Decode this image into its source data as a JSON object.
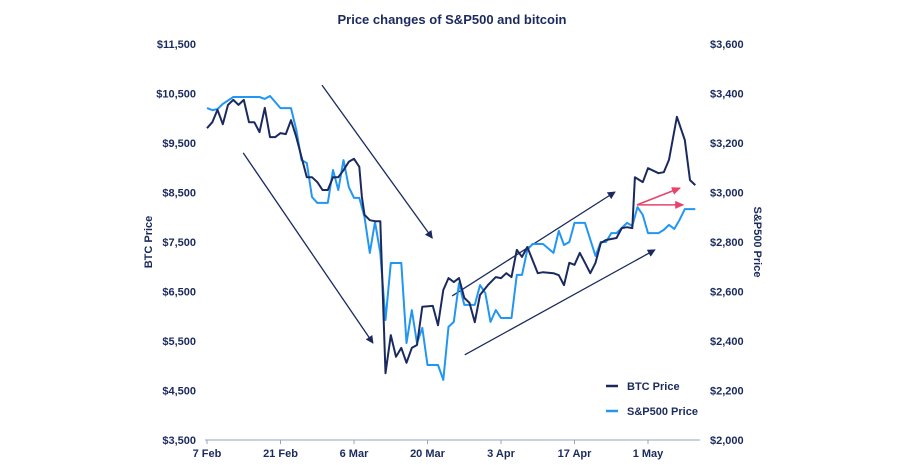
{
  "chart_data": {
    "type": "line",
    "title": "Price changes of S&P500 and bitcoin",
    "xlabel": "",
    "ylabel_left": "BTC Price",
    "ylabel_right": "S&P500 Price",
    "x_unit": "days since 7 Feb",
    "x_ticks": [
      {
        "day": 0,
        "label": "7 Feb"
      },
      {
        "day": 14,
        "label": "21 Feb"
      },
      {
        "day": 28,
        "label": "6 Mar"
      },
      {
        "day": 42,
        "label": "20 Mar"
      },
      {
        "day": 56,
        "label": "3 Apr"
      },
      {
        "day": 70,
        "label": "17 Apr"
      },
      {
        "day": 84,
        "label": "1 May"
      }
    ],
    "xlim": [
      0,
      94
    ],
    "ylim_left": [
      3500,
      11500
    ],
    "ylim_right": [
      2000,
      3600
    ],
    "y_ticks_left": [
      "$3,500",
      "$4,500",
      "$5,500",
      "$6,500",
      "$7,500",
      "$8,500",
      "$9,500",
      "$10,500",
      "$11,500"
    ],
    "y_ticks_right": [
      "$2,000",
      "$2,200",
      "$2,400",
      "$2,600",
      "$2,800",
      "$3,000",
      "$3,200",
      "$3,400",
      "$3,600"
    ],
    "grid": false,
    "legend_position": "bottom-right",
    "colors": {
      "btc": "#1b2a5e",
      "sp500": "#2196f3",
      "highlight": "#e8436a",
      "text": "#1b2a5e"
    },
    "series": [
      {
        "name": "BTC Price",
        "axis": "left",
        "color": "#1b2a5e",
        "points": [
          [
            0,
            9800
          ],
          [
            1,
            9920
          ],
          [
            2,
            10170
          ],
          [
            3,
            9880
          ],
          [
            4,
            10270
          ],
          [
            5,
            10370
          ],
          [
            6,
            10270
          ],
          [
            7,
            10370
          ],
          [
            8,
            9920
          ],
          [
            9,
            9920
          ],
          [
            10,
            9720
          ],
          [
            11,
            10210
          ],
          [
            12,
            9620
          ],
          [
            13,
            9620
          ],
          [
            14,
            9700
          ],
          [
            15,
            9680
          ],
          [
            16,
            9960
          ],
          [
            17,
            9620
          ],
          [
            19,
            8810
          ],
          [
            20,
            8810
          ],
          [
            21,
            8710
          ],
          [
            22,
            8550
          ],
          [
            23,
            8550
          ],
          [
            24,
            8810
          ],
          [
            25,
            8810
          ],
          [
            26,
            8950
          ],
          [
            27,
            9120
          ],
          [
            28,
            9180
          ],
          [
            29,
            9020
          ],
          [
            29.5,
            8410
          ],
          [
            30,
            8050
          ],
          [
            31,
            7940
          ],
          [
            32,
            7920
          ],
          [
            33,
            7920
          ],
          [
            34,
            4850
          ],
          [
            35,
            5620
          ],
          [
            36,
            5180
          ],
          [
            37,
            5360
          ],
          [
            38,
            5060
          ],
          [
            39,
            5360
          ],
          [
            40,
            5420
          ],
          [
            41,
            6190
          ],
          [
            43,
            6210
          ],
          [
            44,
            5820
          ],
          [
            45,
            6530
          ],
          [
            46,
            6770
          ],
          [
            47,
            6690
          ],
          [
            48,
            6770
          ],
          [
            49,
            6370
          ],
          [
            50,
            6270
          ],
          [
            51,
            5880
          ],
          [
            52,
            6430
          ],
          [
            53.5,
            6630
          ],
          [
            55,
            6790
          ],
          [
            56,
            6770
          ],
          [
            57,
            6870
          ],
          [
            58,
            6790
          ],
          [
            59,
            7340
          ],
          [
            60,
            7200
          ],
          [
            61,
            7400
          ],
          [
            63,
            6870
          ],
          [
            64,
            6890
          ],
          [
            66,
            6870
          ],
          [
            67,
            6830
          ],
          [
            68,
            6630
          ],
          [
            69,
            7080
          ],
          [
            70,
            7040
          ],
          [
            71,
            7280
          ],
          [
            72,
            7080
          ],
          [
            73,
            6870
          ],
          [
            74,
            7080
          ],
          [
            75,
            7480
          ],
          [
            76,
            7540
          ],
          [
            78,
            7580
          ],
          [
            79,
            7780
          ],
          [
            80,
            7800
          ],
          [
            81,
            7780
          ],
          [
            81.5,
            8810
          ],
          [
            83,
            8710
          ],
          [
            84,
            8990
          ],
          [
            86,
            8890
          ],
          [
            87,
            8910
          ],
          [
            88,
            9160
          ],
          [
            89.5,
            10030
          ],
          [
            91,
            9560
          ],
          [
            92,
            8750
          ],
          [
            93,
            8650
          ]
        ]
      },
      {
        "name": "S&P500 Price",
        "axis": "right",
        "color": "#2196f3",
        "points": [
          [
            0,
            3341
          ],
          [
            1,
            3333
          ],
          [
            2,
            3337
          ],
          [
            3,
            3358
          ],
          [
            5,
            3386
          ],
          [
            7,
            3386
          ],
          [
            10,
            3386
          ],
          [
            11,
            3378
          ],
          [
            12,
            3390
          ],
          [
            14,
            3341
          ],
          [
            16,
            3341
          ],
          [
            17,
            3253
          ],
          [
            18,
            3131
          ],
          [
            19,
            3119
          ],
          [
            20,
            2982
          ],
          [
            21,
            2958
          ],
          [
            23,
            2958
          ],
          [
            24,
            3091
          ],
          [
            25,
            3010
          ],
          [
            26,
            3131
          ],
          [
            27,
            3022
          ],
          [
            28,
            2978
          ],
          [
            29,
            2978
          ],
          [
            30,
            2901
          ],
          [
            31,
            2756
          ],
          [
            32,
            2881
          ],
          [
            33,
            2756
          ],
          [
            34,
            2485
          ],
          [
            35,
            2715
          ],
          [
            37,
            2715
          ],
          [
            38,
            2392
          ],
          [
            39,
            2525
          ],
          [
            40,
            2392
          ],
          [
            41,
            2453
          ],
          [
            42,
            2303
          ],
          [
            44,
            2303
          ],
          [
            45,
            2243
          ],
          [
            46,
            2457
          ],
          [
            47,
            2477
          ],
          [
            48,
            2634
          ],
          [
            49,
            2546
          ],
          [
            51,
            2546
          ],
          [
            52,
            2626
          ],
          [
            53,
            2594
          ],
          [
            54,
            2477
          ],
          [
            55,
            2525
          ],
          [
            56,
            2493
          ],
          [
            58,
            2493
          ],
          [
            59,
            2667
          ],
          [
            60,
            2667
          ],
          [
            61,
            2768
          ],
          [
            62,
            2792
          ],
          [
            64,
            2792
          ],
          [
            66,
            2756
          ],
          [
            67,
            2845
          ],
          [
            68,
            2788
          ],
          [
            69,
            2800
          ],
          [
            70,
            2877
          ],
          [
            72,
            2877
          ],
          [
            74,
            2744
          ],
          [
            75,
            2800
          ],
          [
            76,
            2800
          ],
          [
            77,
            2836
          ],
          [
            78,
            2836
          ],
          [
            80,
            2877
          ],
          [
            81,
            2865
          ],
          [
            82,
            2941
          ],
          [
            83,
            2909
          ],
          [
            84,
            2836
          ],
          [
            86,
            2836
          ],
          [
            87,
            2849
          ],
          [
            88,
            2869
          ],
          [
            89,
            2853
          ],
          [
            90,
            2889
          ],
          [
            91,
            2933
          ],
          [
            93,
            2933
          ]
        ]
      }
    ],
    "annotations": [
      {
        "type": "arrow",
        "color": "#1b2a5e",
        "from": [
          6.9,
          9300
        ],
        "to": [
          31.6,
          5460
        ],
        "axis": "left"
      },
      {
        "type": "arrow",
        "color": "#1b2a5e",
        "from": [
          21.9,
          10670
        ],
        "to": [
          42.9,
          7580
        ],
        "axis": "left"
      },
      {
        "type": "arrow",
        "color": "#1b2a5e",
        "from": [
          46.7,
          6410
        ],
        "to": [
          77.7,
          8510
        ],
        "axis": "left"
      },
      {
        "type": "arrow",
        "color": "#1b2a5e",
        "from": [
          49.1,
          5220
        ],
        "to": [
          85.3,
          7340
        ],
        "axis": "left"
      },
      {
        "type": "arrow",
        "color": "#e8436a",
        "from": [
          81.9,
          8250
        ],
        "to": [
          90.1,
          8590
        ],
        "axis": "left"
      },
      {
        "type": "arrow",
        "color": "#e8436a",
        "from": [
          81.9,
          8250
        ],
        "to": [
          90.7,
          8250
        ],
        "axis": "left"
      }
    ]
  }
}
